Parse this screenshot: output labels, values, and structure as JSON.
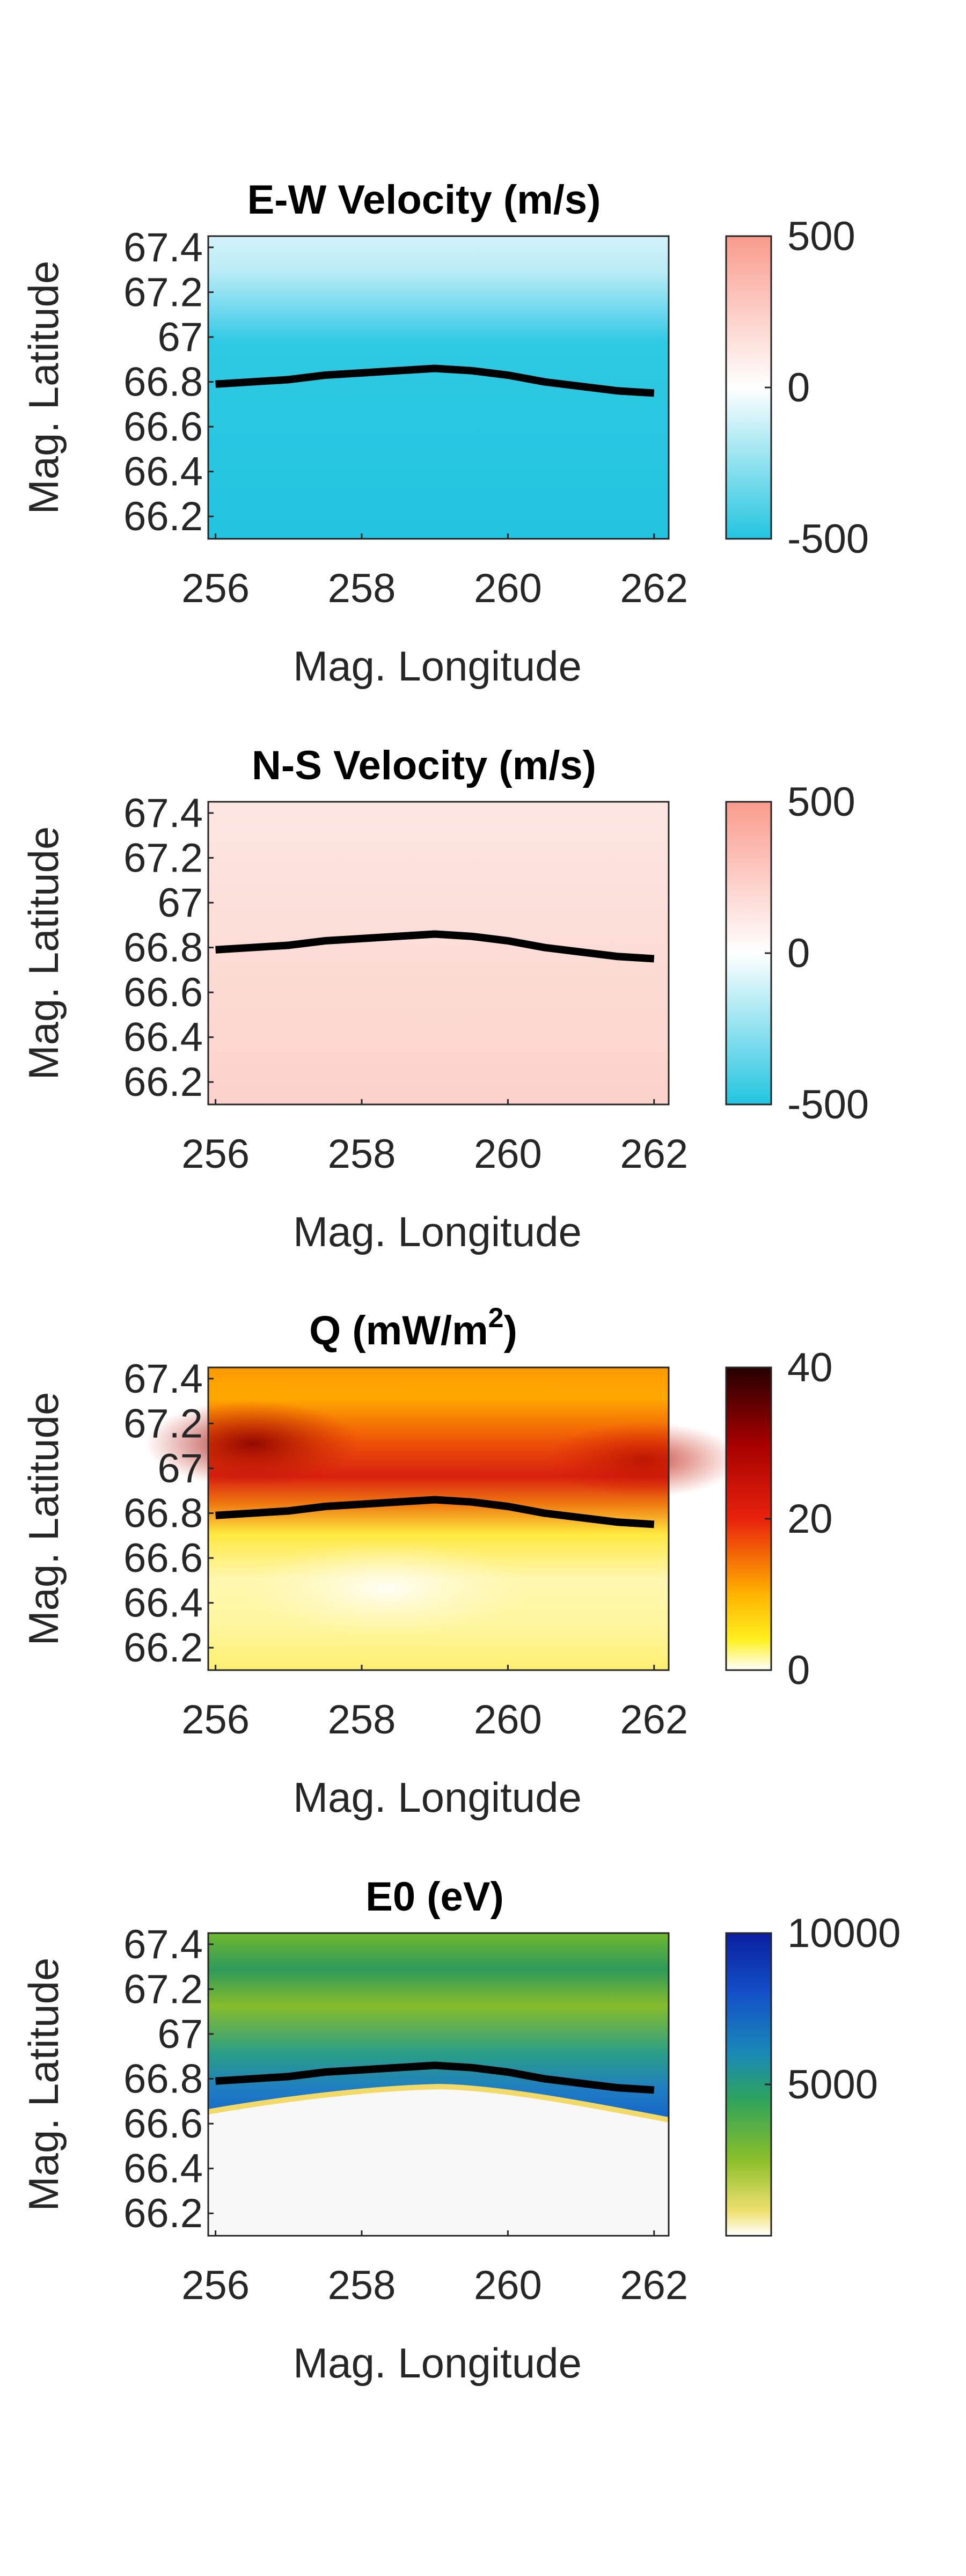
{
  "chart_data": [
    {
      "type": "heatmap",
      "title": "E-W Velocity (m/s)",
      "xlabel": "Mag. Longitude",
      "ylabel": "Mag. Latitude",
      "xlim": [
        255.9,
        262.2
      ],
      "ylim": [
        66.1,
        67.45
      ],
      "xticks": [
        "256",
        "258",
        "260",
        "262"
      ],
      "yticks": [
        "66.2",
        "66.4",
        "66.6",
        "66.8",
        "67",
        "67.2",
        "67.4"
      ],
      "colorbar": {
        "ticks": [
          "500",
          "0",
          "-500"
        ],
        "clim": [
          -500,
          500
        ],
        "colormap": "blue-white-red"
      },
      "field_description": "uniform about -500 m/s below ~67.0, fading to about -100 m/s at top",
      "field_rows": [
        {
          "lat": 66.1,
          "value": -500
        },
        {
          "lat": 66.95,
          "value": -480
        },
        {
          "lat": 67.1,
          "value": -330
        },
        {
          "lat": 67.3,
          "value": -170
        },
        {
          "lat": 67.45,
          "value": -110
        }
      ],
      "boundary": {
        "name": "boundary",
        "x": [
          256.0,
          256.5,
          257.0,
          257.5,
          258.0,
          258.5,
          259.0,
          259.5,
          260.0,
          260.5,
          261.0,
          261.5,
          262.0
        ],
        "y": [
          66.79,
          66.8,
          66.81,
          66.83,
          66.84,
          66.85,
          66.86,
          66.85,
          66.83,
          66.8,
          66.78,
          66.76,
          66.75
        ]
      }
    },
    {
      "type": "heatmap",
      "title": "N-S Velocity (m/s)",
      "xlabel": "Mag. Longitude",
      "ylabel": "Mag. Latitude",
      "xlim": [
        255.9,
        262.2
      ],
      "ylim": [
        66.1,
        67.45
      ],
      "xticks": [
        "256",
        "258",
        "260",
        "262"
      ],
      "yticks": [
        "66.2",
        "66.4",
        "66.6",
        "66.8",
        "67",
        "67.2",
        "67.4"
      ],
      "colorbar": {
        "ticks": [
          "500",
          "0",
          "-500"
        ],
        "clim": [
          -500,
          500
        ],
        "colormap": "blue-white-red"
      },
      "field_rows": [
        {
          "lat": 66.1,
          "value": 150
        },
        {
          "lat": 66.8,
          "value": 140
        },
        {
          "lat": 67.45,
          "value": 110
        }
      ],
      "boundary": {
        "name": "boundary",
        "x": [
          256.0,
          256.5,
          257.0,
          257.5,
          258.0,
          258.5,
          259.0,
          259.5,
          260.0,
          260.5,
          261.0,
          261.5,
          262.0
        ],
        "y": [
          66.79,
          66.8,
          66.81,
          66.83,
          66.84,
          66.85,
          66.86,
          66.85,
          66.83,
          66.8,
          66.78,
          66.76,
          66.75
        ]
      }
    },
    {
      "type": "heatmap",
      "title": "Q (mW/m",
      "title_sup": "2",
      "title_end": ")",
      "xlabel": "Mag. Longitude",
      "ylabel": "Mag. Latitude",
      "xlim": [
        255.9,
        262.2
      ],
      "ylim": [
        66.1,
        67.45
      ],
      "xticks": [
        "256",
        "258",
        "260",
        "262"
      ],
      "yticks": [
        "66.2",
        "66.4",
        "66.6",
        "66.8",
        "67",
        "67.2",
        "67.4"
      ],
      "colorbar": {
        "ticks": [
          "40",
          "20",
          "0"
        ],
        "clim": [
          0,
          40
        ],
        "colormap": "hot"
      },
      "field_rows": [
        {
          "lat": 66.1,
          "value": 4
        },
        {
          "lat": 66.5,
          "value": 2
        },
        {
          "lat": 66.75,
          "value": 8
        },
        {
          "lat": 66.9,
          "value": 20
        },
        {
          "lat": 67.0,
          "value": 22
        },
        {
          "lat": 67.2,
          "value": 14
        },
        {
          "lat": 67.45,
          "value": 12
        }
      ],
      "hotspots": [
        {
          "lon": 256.5,
          "lat": 67.0,
          "value": 30
        },
        {
          "lon": 261.8,
          "lat": 66.9,
          "value": 24
        }
      ],
      "boundary": {
        "name": "boundary",
        "x": [
          256.0,
          256.5,
          257.0,
          257.5,
          258.0,
          258.5,
          259.0,
          259.5,
          260.0,
          260.5,
          261.0,
          261.5,
          262.0
        ],
        "y": [
          66.79,
          66.8,
          66.81,
          66.83,
          66.84,
          66.85,
          66.86,
          66.85,
          66.83,
          66.8,
          66.78,
          66.76,
          66.75
        ]
      }
    },
    {
      "type": "heatmap",
      "title": "E0 (eV)",
      "xlabel": "Mag. Longitude",
      "ylabel": "Mag. Latitude",
      "xlim": [
        255.9,
        262.2
      ],
      "ylim": [
        66.1,
        67.45
      ],
      "xticks": [
        "256",
        "258",
        "260",
        "262"
      ],
      "yticks": [
        "66.2",
        "66.4",
        "66.6",
        "66.8",
        "67",
        "67.2",
        "67.4"
      ],
      "colorbar": {
        "ticks": [
          "10000",
          "5000"
        ],
        "clim": [
          0,
          10000
        ],
        "colormap": "parula-reversed-discrete"
      },
      "field_rows": [
        {
          "lat": 66.7,
          "value": 2500
        },
        {
          "lat": 66.8,
          "value": 8000
        },
        {
          "lat": 66.95,
          "value": 7500
        },
        {
          "lat": 67.2,
          "value": 4600
        },
        {
          "lat": 67.4,
          "value": 5600
        }
      ],
      "boundary": {
        "name": "boundary",
        "x": [
          256.0,
          256.5,
          257.0,
          257.5,
          258.0,
          258.5,
          259.0,
          259.5,
          260.0,
          260.5,
          261.0,
          261.5,
          262.0
        ],
        "y": [
          66.79,
          66.8,
          66.81,
          66.83,
          66.84,
          66.85,
          66.86,
          66.85,
          66.83,
          66.8,
          66.78,
          66.76,
          66.75
        ]
      }
    }
  ]
}
